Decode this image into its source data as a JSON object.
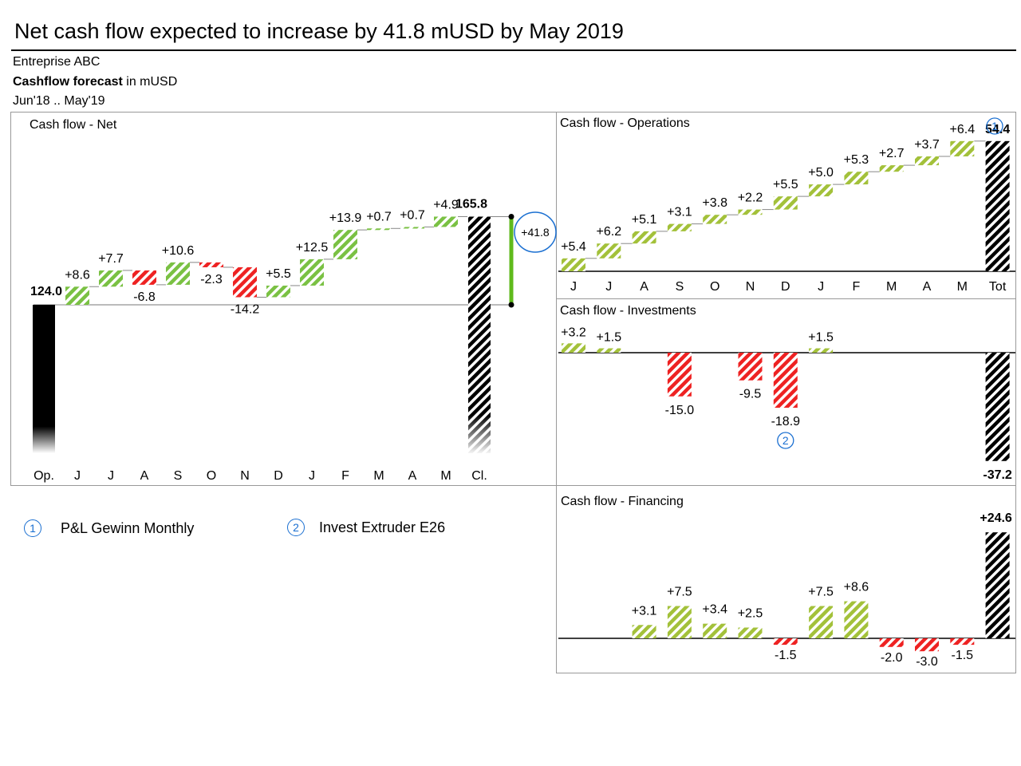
{
  "title": "Net cash flow expected to increase by 41.8 mUSD by May 2019",
  "subtitle": {
    "company": "Entreprise ABC",
    "measure_bold": "Cashflow forecast",
    "measure_unit": " in mUSD",
    "period": "Jun'18 .. May'19"
  },
  "legend": [
    {
      "marker": "1",
      "text": "P&L Gewinn Monthly"
    },
    {
      "marker": "2",
      "text": "Invest Extruder E26"
    }
  ],
  "colors": {
    "positive": "#7ac143",
    "positive_ops": "#a3c13a",
    "negative": "#ee2222",
    "total": "#000000",
    "delta_bar": "#5fba1c",
    "annotation": "#1a6fd1",
    "frame": "#999999"
  },
  "chart_data": [
    {
      "id": "net",
      "type": "waterfall",
      "title": "Cash flow - Net",
      "categories": [
        "Op.",
        "J",
        "J",
        "A",
        "S",
        "O",
        "N",
        "D",
        "J",
        "F",
        "M",
        "A",
        "M",
        "Cl."
      ],
      "values": [
        124.0,
        8.6,
        7.7,
        -6.8,
        10.6,
        -2.3,
        -14.2,
        5.5,
        12.5,
        13.9,
        0.7,
        0.7,
        4.9,
        165.8
      ],
      "labels": [
        "124.0",
        "+8.6",
        "+7.7",
        "-6.8",
        "+10.6",
        "-2.3",
        "-14.2",
        "+5.5",
        "+12.5",
        "+13.9",
        "+0.7",
        "+0.7",
        "+4.9",
        "165.8"
      ],
      "delta": {
        "value": 41.8,
        "label": "+41.8",
        "from": 124.0,
        "to": 165.8
      }
    },
    {
      "id": "ops",
      "type": "waterfall",
      "title": "Cash flow - Operations",
      "categories": [
        "J",
        "J",
        "A",
        "S",
        "O",
        "N",
        "D",
        "J",
        "F",
        "M",
        "A",
        "M",
        "Tot"
      ],
      "values": [
        5.4,
        6.2,
        5.1,
        3.1,
        3.8,
        2.2,
        5.5,
        5.0,
        5.3,
        2.7,
        3.7,
        6.4,
        54.4
      ],
      "labels": [
        "+5.4",
        "+6.2",
        "+5.1",
        "+3.1",
        "+3.8",
        "+2.2",
        "+5.5",
        "+5.0",
        "+5.3",
        "+2.7",
        "+3.7",
        "+6.4",
        "54.4"
      ],
      "annotation": {
        "marker": "1",
        "category_index": 12
      }
    },
    {
      "id": "inv",
      "type": "bar",
      "title": "Cash flow - Investments",
      "values": [
        3.2,
        1.5,
        null,
        -15.0,
        null,
        -9.5,
        -18.9,
        1.5,
        null,
        null,
        null,
        null,
        -37.2
      ],
      "labels": [
        "+3.2",
        "+1.5",
        "",
        "-15.0",
        "",
        "-9.5",
        "-18.9",
        "+1.5",
        "",
        "",
        "",
        "",
        "-37.2"
      ],
      "annotation": {
        "marker": "2",
        "category_index": 6
      }
    },
    {
      "id": "fin",
      "type": "bar",
      "title": "Cash flow - Financing",
      "values": [
        null,
        null,
        3.1,
        7.5,
        3.4,
        2.5,
        -1.5,
        7.5,
        8.6,
        -2.0,
        -3.0,
        -1.5,
        24.6
      ],
      "labels": [
        "",
        "",
        "+3.1",
        "+7.5",
        "+3.4",
        "+2.5",
        "-1.5",
        "+7.5",
        "+8.6",
        "-2.0",
        "-3.0",
        "-1.5",
        "+24.6"
      ]
    }
  ]
}
